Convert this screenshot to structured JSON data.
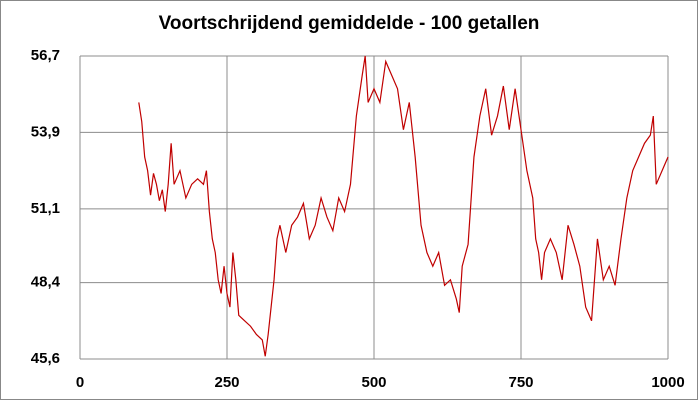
{
  "chart_data": {
    "type": "line",
    "title": "Voortschrijdend gemiddelde - 100 getallen",
    "x": [
      100,
      105,
      110,
      115,
      120,
      125,
      130,
      135,
      140,
      145,
      150,
      155,
      160,
      170,
      180,
      190,
      200,
      210,
      215,
      220,
      225,
      230,
      235,
      240,
      245,
      250,
      255,
      260,
      265,
      270,
      280,
      290,
      300,
      310,
      315,
      320,
      330,
      335,
      340,
      350,
      360,
      370,
      380,
      390,
      400,
      410,
      420,
      430,
      440,
      450,
      460,
      470,
      480,
      485,
      490,
      500,
      510,
      520,
      530,
      540,
      550,
      560,
      570,
      580,
      590,
      600,
      610,
      620,
      630,
      640,
      645,
      650,
      660,
      670,
      680,
      690,
      700,
      710,
      720,
      730,
      740,
      750,
      760,
      770,
      775,
      780,
      785,
      790,
      800,
      810,
      820,
      830,
      840,
      850,
      860,
      870,
      875,
      880,
      890,
      900,
      910,
      920,
      930,
      940,
      950,
      960,
      970,
      975,
      980,
      990,
      1000
    ],
    "series": [
      {
        "name": "Voortschrijdend gemiddelde",
        "color": "#c00000",
        "values": [
          55.0,
          54.3,
          53.0,
          52.5,
          51.6,
          52.4,
          52.0,
          51.4,
          51.8,
          51.0,
          52.0,
          53.5,
          52.0,
          52.5,
          51.5,
          52.0,
          52.2,
          52.0,
          52.5,
          51.0,
          50.0,
          49.5,
          48.5,
          48.0,
          49.0,
          48.0,
          47.5,
          49.5,
          48.5,
          47.2,
          47.0,
          46.8,
          46.5,
          46.3,
          45.7,
          46.5,
          48.5,
          50.0,
          50.5,
          49.5,
          50.5,
          50.8,
          51.3,
          50.0,
          50.5,
          51.5,
          50.8,
          50.3,
          51.5,
          51.0,
          52.0,
          54.5,
          56.0,
          56.7,
          55.0,
          55.5,
          55.0,
          56.5,
          56.0,
          55.5,
          54.0,
          55.0,
          53.0,
          50.5,
          49.5,
          49.0,
          49.5,
          48.3,
          48.5,
          47.8,
          47.3,
          49.0,
          49.8,
          53.0,
          54.5,
          55.5,
          53.8,
          54.5,
          55.6,
          54.0,
          55.5,
          54.0,
          52.5,
          51.5,
          50.0,
          49.5,
          48.5,
          49.5,
          50.0,
          49.5,
          48.5,
          50.5,
          49.8,
          49.0,
          47.5,
          47.0,
          48.5,
          50.0,
          48.5,
          49.0,
          48.3,
          50.0,
          51.5,
          52.5,
          53.0,
          53.5,
          53.8,
          54.5,
          52.0,
          52.5,
          53.0
        ]
      }
    ],
    "xlim": [
      0,
      1000
    ],
    "xticks": [
      0,
      250,
      500,
      750,
      1000
    ],
    "ylim": [
      45.6,
      56.7
    ],
    "yticks": [
      {
        "value": 45.6,
        "label": "45,6"
      },
      {
        "value": 48.4,
        "label": "48,4"
      },
      {
        "value": 51.1,
        "label": "51,1"
      },
      {
        "value": 53.9,
        "label": "53,9"
      },
      {
        "value": 56.7,
        "label": "56,7"
      }
    ],
    "grid": true
  }
}
